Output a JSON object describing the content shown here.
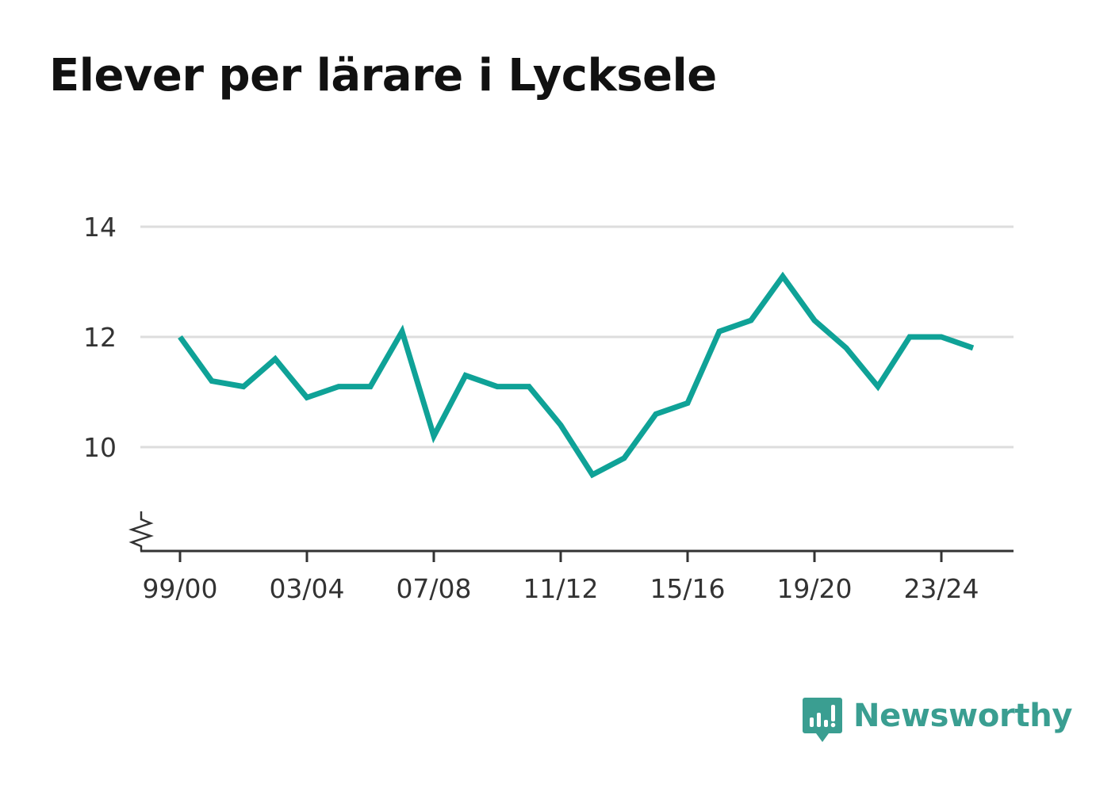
{
  "chart_data": {
    "type": "line",
    "title": "Elever per lärare i Lycksele",
    "xlabel": "",
    "ylabel": "",
    "categories": [
      "99/00",
      "00/01",
      "01/02",
      "02/03",
      "03/04",
      "04/05",
      "05/06",
      "06/07",
      "07/08",
      "08/09",
      "09/10",
      "10/11",
      "11/12",
      "12/13",
      "13/14",
      "14/15",
      "15/16",
      "16/17",
      "17/18",
      "18/19",
      "19/20",
      "20/21",
      "21/22",
      "22/23",
      "23/24",
      "24/25"
    ],
    "tick_labels": [
      "99/00",
      "03/04",
      "07/08",
      "11/12",
      "15/16",
      "19/20",
      "23/24"
    ],
    "y_ticks": [
      10,
      12,
      14
    ],
    "ylim": [
      8.1,
      14
    ],
    "y_axis_break": true,
    "grid": true,
    "line_color": "#0fa297",
    "series": [
      {
        "values": [
          12.0,
          11.2,
          11.1,
          11.6,
          10.9,
          11.1,
          11.1,
          12.1,
          10.2,
          11.3,
          11.1,
          11.1,
          10.4,
          9.5,
          9.8,
          10.6,
          10.8,
          12.1,
          12.3,
          13.1,
          12.3,
          11.8,
          11.1,
          12.0,
          12.0,
          11.8
        ]
      }
    ]
  },
  "brand": {
    "name": "Newsworthy",
    "color": "#3a9e91",
    "icon": "newsworthy-logo-icon"
  }
}
